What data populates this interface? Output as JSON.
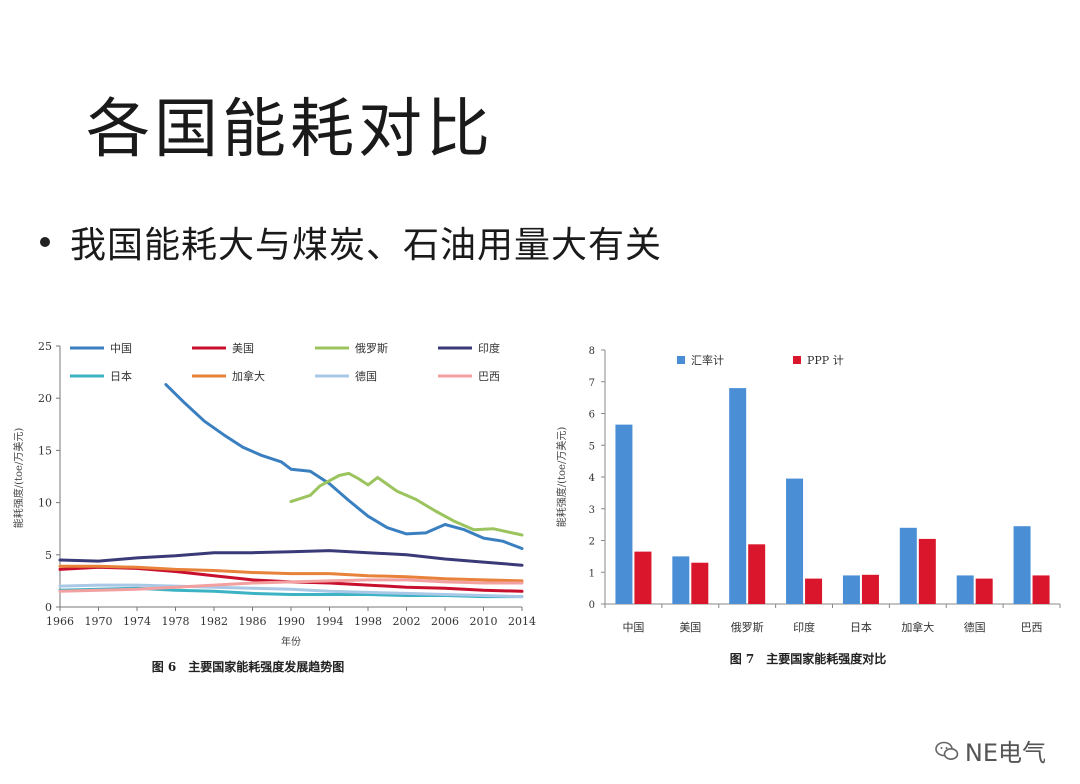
{
  "slide": {
    "title": "各国能耗对比",
    "bullet": "我国能耗大与煤炭、石油用量大有关"
  },
  "watermark": {
    "text": "NE电气"
  },
  "chart_data": [
    {
      "type": "line",
      "caption": "图 6　主要国家能耗强度发展趋势图",
      "xlabel": "年份",
      "ylabel": "能耗强度/(toe/万美元)",
      "xlim": [
        1966,
        2014
      ],
      "ylim": [
        0,
        25
      ],
      "xticks": [
        1966,
        1970,
        1974,
        1978,
        1982,
        1986,
        1990,
        1994,
        1998,
        2002,
        2006,
        2010,
        2014
      ],
      "yticks": [
        0,
        5,
        10,
        15,
        20,
        25
      ],
      "grid": false,
      "legend": "top",
      "series": [
        {
          "name": "中国",
          "color": "#3a7fc0",
          "x": [
            1977,
            1979,
            1981,
            1983,
            1985,
            1987,
            1989,
            1990,
            1992,
            1994,
            1996,
            1998,
            2000,
            2002,
            2004,
            2006,
            2008,
            2010,
            2012,
            2014
          ],
          "y": [
            21.3,
            19.5,
            17.8,
            16.5,
            15.3,
            14.5,
            13.9,
            13.2,
            13.0,
            11.8,
            10.2,
            8.7,
            7.6,
            7.0,
            7.1,
            7.9,
            7.4,
            6.6,
            6.3,
            5.6
          ]
        },
        {
          "name": "美国",
          "color": "#c8102e",
          "x": [
            1966,
            1970,
            1974,
            1978,
            1982,
            1986,
            1990,
            1994,
            1998,
            2002,
            2006,
            2010,
            2014
          ],
          "y": [
            3.6,
            3.8,
            3.7,
            3.4,
            3.0,
            2.6,
            2.4,
            2.3,
            2.1,
            1.9,
            1.8,
            1.6,
            1.5
          ]
        },
        {
          "name": "俄罗斯",
          "color": "#9cc45e",
          "x": [
            1990,
            1992,
            1993,
            1995,
            1996,
            1997,
            1998,
            1999,
            2001,
            2003,
            2005,
            2007,
            2009,
            2011,
            2014
          ],
          "y": [
            10.1,
            10.7,
            11.6,
            12.6,
            12.8,
            12.3,
            11.7,
            12.4,
            11.1,
            10.3,
            9.2,
            8.2,
            7.4,
            7.5,
            6.9
          ]
        },
        {
          "name": "印度",
          "color": "#3a3a78",
          "x": [
            1966,
            1970,
            1974,
            1978,
            1982,
            1986,
            1990,
            1994,
            1998,
            2002,
            2006,
            2010,
            2014
          ],
          "y": [
            4.5,
            4.4,
            4.7,
            4.9,
            5.2,
            5.2,
            5.3,
            5.4,
            5.2,
            5.0,
            4.6,
            4.3,
            4.0
          ]
        },
        {
          "name": "日本",
          "color": "#3bb3c4",
          "x": [
            1966,
            1970,
            1974,
            1978,
            1982,
            1986,
            1990,
            1994,
            1998,
            2002,
            2006,
            2010,
            2014
          ],
          "y": [
            1.6,
            1.7,
            1.8,
            1.6,
            1.5,
            1.3,
            1.2,
            1.2,
            1.2,
            1.1,
            1.1,
            1.0,
            1.0
          ]
        },
        {
          "name": "加拿大",
          "color": "#e8823a",
          "x": [
            1966,
            1970,
            1974,
            1978,
            1982,
            1986,
            1990,
            1994,
            1998,
            2002,
            2006,
            2010,
            2014
          ],
          "y": [
            3.9,
            3.9,
            3.8,
            3.6,
            3.5,
            3.3,
            3.2,
            3.2,
            3.0,
            2.9,
            2.7,
            2.6,
            2.5
          ]
        },
        {
          "name": "德国",
          "color": "#a9c8e6",
          "x": [
            1966,
            1970,
            1974,
            1978,
            1982,
            1986,
            1990,
            1994,
            1998,
            2002,
            2006,
            2010,
            2014
          ],
          "y": [
            2.0,
            2.1,
            2.1,
            2.0,
            1.9,
            1.8,
            1.7,
            1.5,
            1.4,
            1.3,
            1.2,
            1.1,
            1.0
          ]
        },
        {
          "name": "巴西",
          "color": "#f2a0a0",
          "x": [
            1966,
            1970,
            1974,
            1978,
            1982,
            1986,
            1990,
            1994,
            1998,
            2002,
            2006,
            2010,
            2014
          ],
          "y": [
            1.5,
            1.6,
            1.7,
            1.9,
            2.1,
            2.3,
            2.4,
            2.5,
            2.6,
            2.6,
            2.4,
            2.3,
            2.3
          ]
        }
      ]
    },
    {
      "type": "bar",
      "caption": "图 7　主要国家能耗强度对比",
      "ylabel": "能耗强度/(toe/万美元)",
      "ylim": [
        0,
        8
      ],
      "yticks": [
        0,
        1,
        2,
        3,
        4,
        5,
        6,
        7,
        8
      ],
      "grid": false,
      "legend": "top",
      "categories": [
        "中国",
        "美国",
        "俄罗斯",
        "印度",
        "日本",
        "加拿大",
        "德国",
        "巴西"
      ],
      "series": [
        {
          "name": "汇率计",
          "color": "#4a8fd6",
          "values": [
            5.65,
            1.5,
            6.8,
            3.95,
            0.9,
            2.4,
            0.9,
            2.45
          ]
        },
        {
          "name": "PPP 计",
          "color": "#d9162c",
          "values": [
            1.65,
            1.3,
            1.88,
            0.8,
            0.92,
            2.05,
            0.8,
            0.9
          ]
        }
      ]
    }
  ]
}
